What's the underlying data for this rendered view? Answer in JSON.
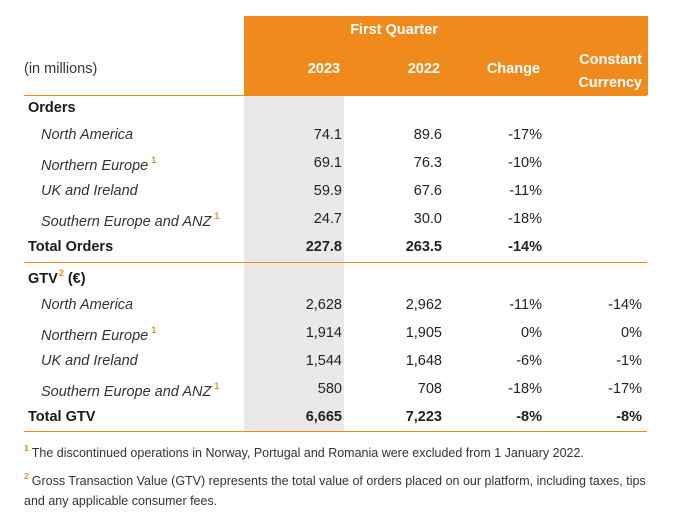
{
  "header": {
    "units": "(in millions)",
    "first_quarter": "First Quarter",
    "col_2023": "2023",
    "col_2022": "2022",
    "col_change": "Change",
    "col_cc_line1": "Constant",
    "col_cc_line2": "Currency"
  },
  "orders": {
    "title": "Orders",
    "rows": [
      {
        "label": "North America",
        "v2023": "74.1",
        "v2022": "89.6",
        "change": "-17%",
        "cc": ""
      },
      {
        "label": "Northern Europe",
        "fn": "1",
        "v2023": "69.1",
        "v2022": "76.3",
        "change": "-10%",
        "cc": ""
      },
      {
        "label": "UK and Ireland",
        "v2023": "59.9",
        "v2022": "67.6",
        "change": "-11%",
        "cc": ""
      },
      {
        "label": "Southern Europe and ANZ",
        "fn": "1",
        "v2023": "24.7",
        "v2022": "30.0",
        "change": "-18%",
        "cc": ""
      }
    ],
    "total": {
      "label": "Total Orders",
      "v2023": "227.8",
      "v2022": "263.5",
      "change": "-14%",
      "cc": ""
    }
  },
  "gtv": {
    "title_prefix": "GTV",
    "title_fn": "2",
    "title_suffix": " (€)",
    "rows": [
      {
        "label": "North America",
        "v2023": "2,628",
        "v2022": "2,962",
        "change": "-11%",
        "cc": "-14%"
      },
      {
        "label": "Northern Europe",
        "fn": "1",
        "v2023": "1,914",
        "v2022": "1,905",
        "change": "0%",
        "cc": "0%"
      },
      {
        "label": "UK and Ireland",
        "v2023": "1,544",
        "v2022": "1,648",
        "change": "-6%",
        "cc": "-1%"
      },
      {
        "label": "Southern Europe and ANZ",
        "fn": "1",
        "v2023": "580",
        "v2022": "708",
        "change": "-18%",
        "cc": "-17%"
      }
    ],
    "total": {
      "label": "Total GTV",
      "v2023": "6,665",
      "v2022": "7,223",
      "change": "-8%",
      "cc": "-8%"
    }
  },
  "footnotes": [
    {
      "marker": "1",
      "text": "The discontinued operations in Norway, Portugal and Romania were excluded from 1 January 2022."
    },
    {
      "marker": "2",
      "text": "Gross Transaction Value (GTV) represents the total value of orders placed on our platform, including taxes, tips and any applicable consumer fees."
    }
  ],
  "colors": {
    "accent": "#f08a1c",
    "highlight_column": "#e9e9e9"
  }
}
